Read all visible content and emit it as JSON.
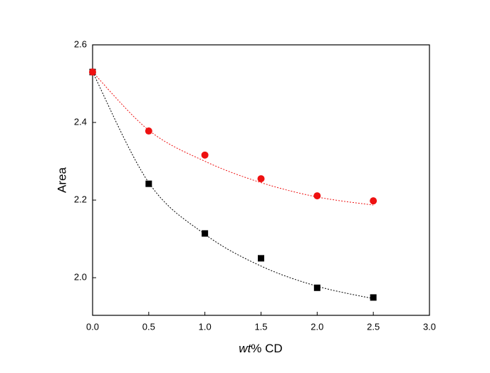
{
  "chart_data": {
    "type": "scatter",
    "x_label_italic": "wt",
    "x_label": "% CD",
    "y_label": "Area",
    "x": [
      0,
      0.5,
      1.0,
      1.5,
      2.0,
      2.5
    ],
    "series": [
      {
        "color": "#000000",
        "marker": "square",
        "values": [
          2.53,
          2.242,
          2.114,
          2.05,
          1.974,
          1.949
        ],
        "fit_values": [
          2.53,
          2.245,
          2.112,
          2.03,
          1.978,
          1.946
        ]
      },
      {
        "color": "#ee1111",
        "marker": "circle",
        "values": [
          2.53,
          2.378,
          2.316,
          2.255,
          2.211,
          2.198
        ],
        "fit_values": [
          2.53,
          2.38,
          2.3,
          2.245,
          2.208,
          2.187
        ]
      }
    ],
    "xlim": [
      0,
      3.0
    ],
    "xticks": [
      {
        "value": 0,
        "label": "0.0"
      },
      {
        "value": 0.5,
        "label": "0.5"
      },
      {
        "value": 1.0,
        "label": "1.0"
      },
      {
        "value": 1.5,
        "label": "1.5"
      },
      {
        "value": 2.0,
        "label": "2.0"
      },
      {
        "value": 2.5,
        "label": "2.5"
      },
      {
        "value": 3.0,
        "label": "3.0"
      }
    ],
    "ylim": [
      1.903,
      2.6
    ],
    "yticks": [
      {
        "value": 2.0,
        "label": "2.0"
      },
      {
        "value": 2.2,
        "label": "2.2"
      },
      {
        "value": 2.4,
        "label": "2.4"
      },
      {
        "value": 2.6,
        "label": "2.6"
      }
    ]
  }
}
